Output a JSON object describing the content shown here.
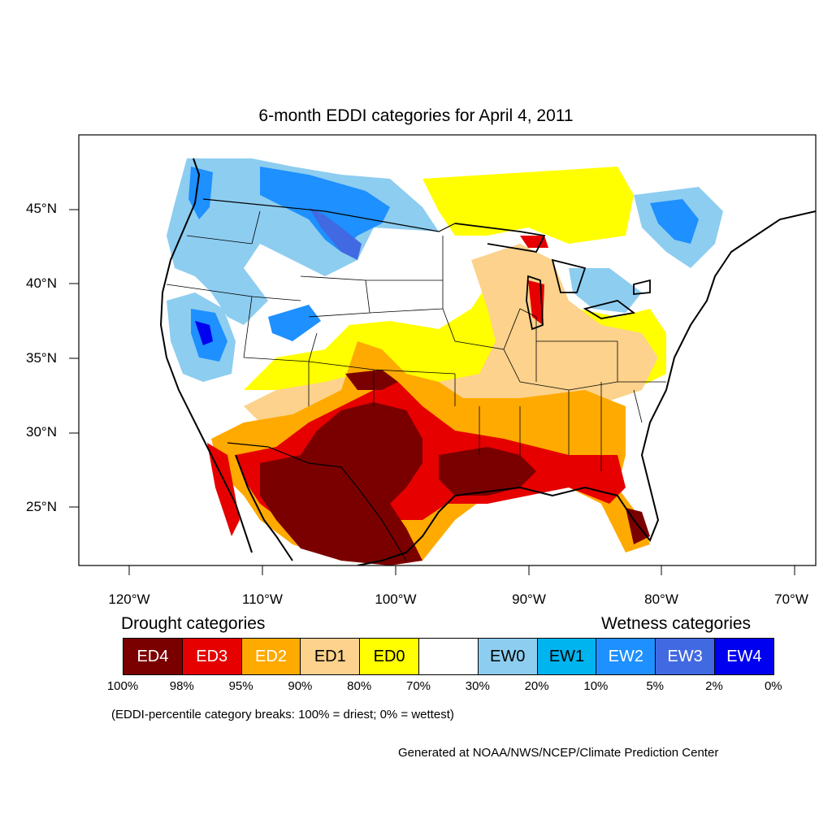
{
  "title": "6-month EDDI categories for April 4, 2011",
  "lat_labels": [
    "45°N",
    "40°N",
    "35°N",
    "30°N",
    "25°N"
  ],
  "lon_labels": [
    "120°W",
    "110°W",
    "100°W",
    "90°W",
    "80°W",
    "70°W"
  ],
  "legend": {
    "drought_heading": "Drought categories",
    "wetness_heading": "Wetness categories",
    "categories": [
      {
        "label": "ED4",
        "color": "#7a0000",
        "text_color": "#ffffff"
      },
      {
        "label": "ED3",
        "color": "#e60000",
        "text_color": "#ffffff"
      },
      {
        "label": "ED2",
        "color": "#ffaa00",
        "text_color": "#ffffff"
      },
      {
        "label": "ED1",
        "color": "#fcd28c",
        "text_color": "#000000"
      },
      {
        "label": "ED0",
        "color": "#ffff00",
        "text_color": "#000000"
      },
      {
        "label": "",
        "color": "#ffffff",
        "text_color": "#000000"
      },
      {
        "label": "EW0",
        "color": "#8dcdf0",
        "text_color": "#000000"
      },
      {
        "label": "EW1",
        "color": "#00b4f0",
        "text_color": "#000000"
      },
      {
        "label": "EW2",
        "color": "#1e90ff",
        "text_color": "#ffffff"
      },
      {
        "label": "EW3",
        "color": "#4169e1",
        "text_color": "#ffffff"
      },
      {
        "label": "EW4",
        "color": "#0000f0",
        "text_color": "#ffffff"
      }
    ],
    "percentiles": [
      "100%",
      "98%",
      "95%",
      "90%",
      "80%",
      "70%",
      "30%",
      "20%",
      "10%",
      "5%",
      "2%",
      "0%"
    ]
  },
  "note": "(EDDI-percentile category breaks: 100% = driest; 0% = wettest)",
  "credit": "Generated at NOAA/NWS/NCEP/Climate Prediction Center"
}
